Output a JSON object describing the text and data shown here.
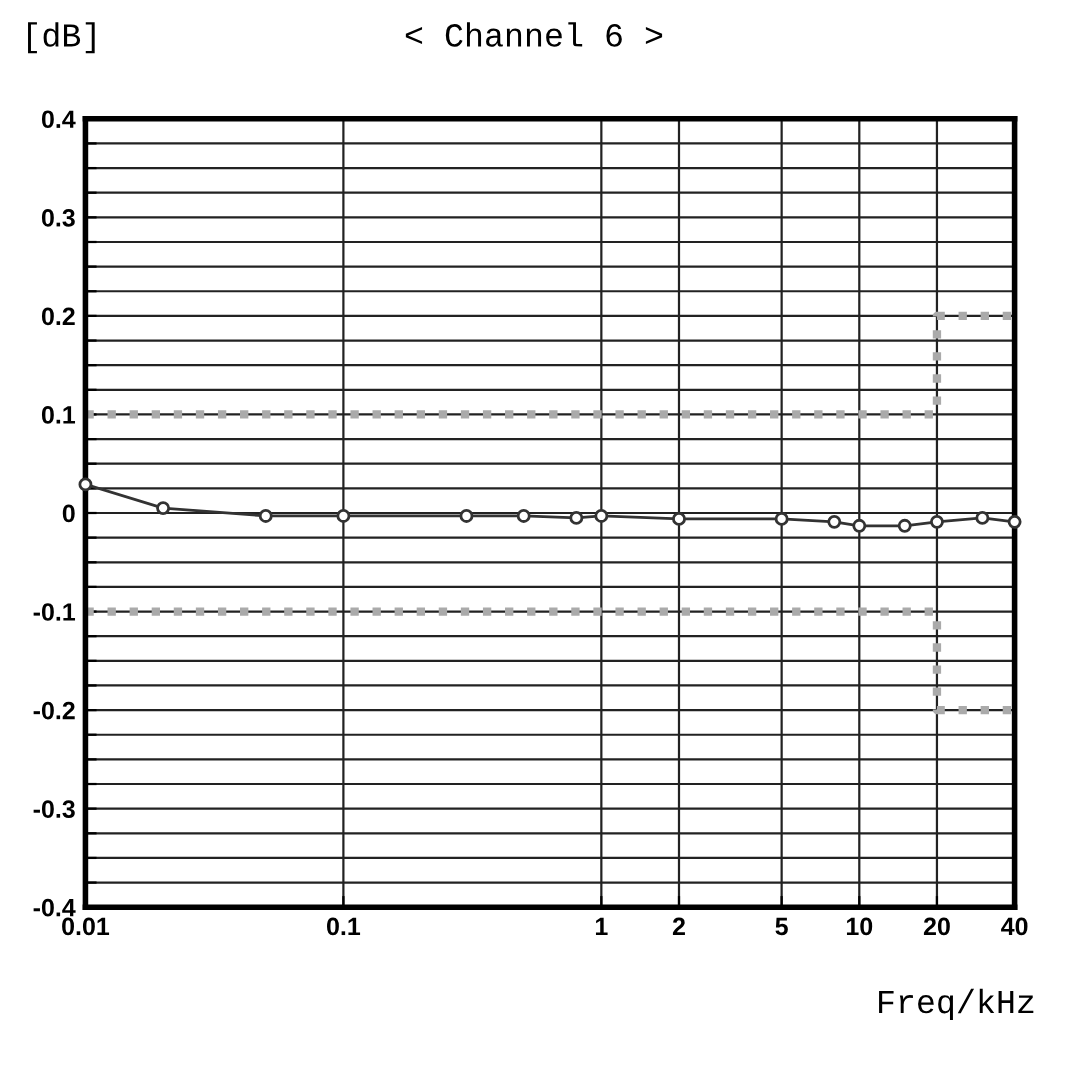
{
  "chart_data": {
    "type": "line",
    "title": "< Channel 6 >",
    "ylabel": "[dB]",
    "xlabel": "Freq/kHz",
    "log": "x",
    "xlim": [
      0.01,
      40
    ],
    "xticks": [
      0.01,
      0.1,
      1,
      2,
      5,
      10,
      20,
      40
    ],
    "ylim": [
      -0.4,
      0.4
    ],
    "yticks": [
      {
        "value": -0.4,
        "label": "-0.4"
      },
      {
        "value": -0.375,
        "label": null
      },
      {
        "value": -0.35,
        "label": null
      },
      {
        "value": -0.325,
        "label": null
      },
      {
        "value": -0.3,
        "label": "-0.3"
      },
      {
        "value": -0.275,
        "label": null
      },
      {
        "value": -0.25,
        "label": null
      },
      {
        "value": -0.225,
        "label": null
      },
      {
        "value": -0.2,
        "label": "-0.2"
      },
      {
        "value": -0.175,
        "label": null
      },
      {
        "value": -0.15,
        "label": null
      },
      {
        "value": -0.125,
        "label": null
      },
      {
        "value": -0.1,
        "label": "-0.1"
      },
      {
        "value": -0.075,
        "label": null
      },
      {
        "value": -0.05,
        "label": null
      },
      {
        "value": -0.025,
        "label": null
      },
      {
        "value": 0,
        "label": "0"
      },
      {
        "value": 0.025,
        "label": null
      },
      {
        "value": 0.05,
        "label": null
      },
      {
        "value": 0.075,
        "label": null
      },
      {
        "value": 0.1,
        "label": "0.1"
      },
      {
        "value": 0.125,
        "label": null
      },
      {
        "value": 0.15,
        "label": null
      },
      {
        "value": 0.175,
        "label": null
      },
      {
        "value": 0.2,
        "label": "0.2"
      },
      {
        "value": 0.225,
        "label": null
      },
      {
        "value": 0.25,
        "label": null
      },
      {
        "value": 0.275,
        "label": null
      },
      {
        "value": 0.3,
        "label": "0.3"
      },
      {
        "value": 0.325,
        "label": null
      },
      {
        "value": 0.35,
        "label": null
      },
      {
        "value": 0.375,
        "label": null
      },
      {
        "value": 0.4,
        "label": "0.4"
      }
    ],
    "grid": true,
    "legend": false,
    "series": [
      {
        "type": "step",
        "color": "#aaaaaa",
        "line_style": "dotted",
        "marker": "none",
        "x": [
          0.01,
          20,
          40
        ],
        "values": [
          0.1,
          0.2,
          0.2
        ]
      },
      {
        "type": "step",
        "color": "#aaaaaa",
        "line_style": "dotted",
        "marker": "none",
        "x": [
          0.01,
          20,
          40
        ],
        "values": [
          -0.1,
          -0.2,
          -0.2
        ]
      },
      {
        "color": "#333333",
        "line_style": "solid",
        "marker": "circle",
        "x": [
          0.01,
          0.02,
          0.05,
          0.1,
          0.3,
          0.5,
          0.8,
          1,
          2,
          5,
          8,
          10,
          15,
          20,
          30,
          40
        ],
        "values": [
          0.029,
          0.005,
          -0.003,
          -0.003,
          -0.003,
          -0.003,
          -0.005,
          -0.003,
          -0.006,
          -0.006,
          -0.009,
          -0.013,
          -0.013,
          -0.009,
          -0.005,
          -0.009
        ]
      }
    ]
  }
}
